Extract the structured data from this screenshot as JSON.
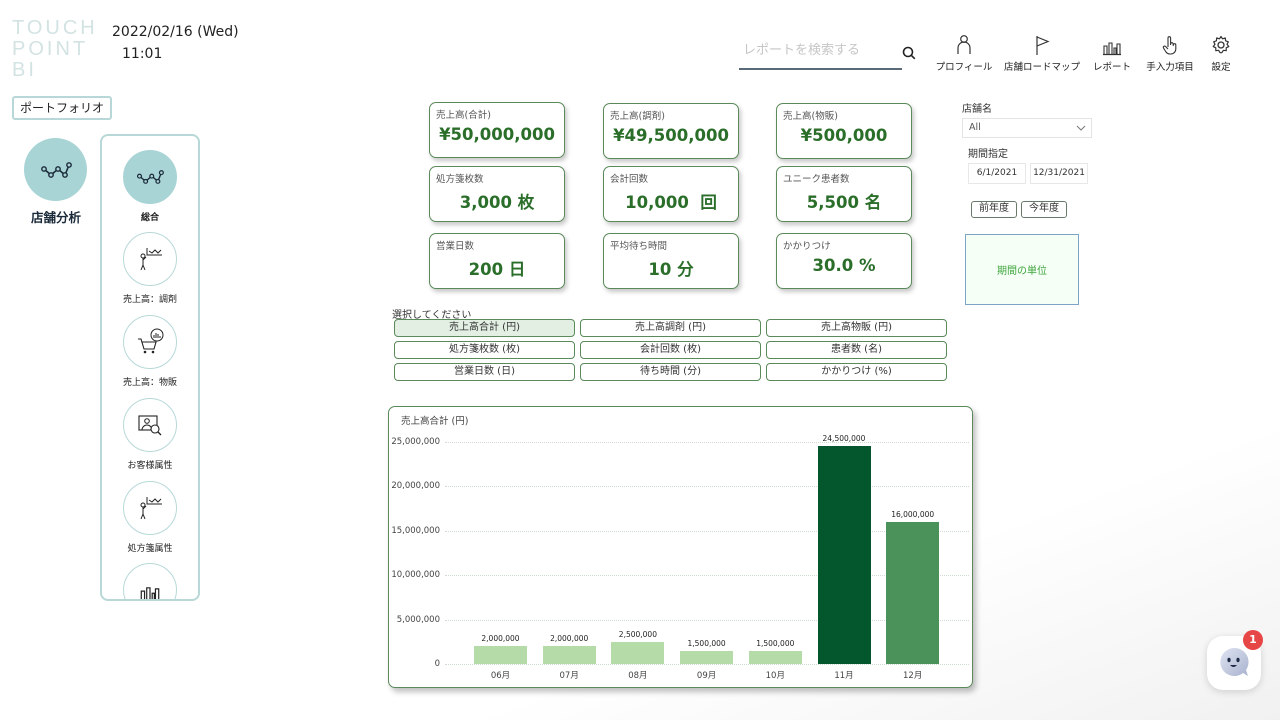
{
  "app": {
    "logo_lines": [
      "TOUCH",
      "POINT",
      "BI"
    ],
    "date": "2022/02/16 (Wed)",
    "time": "11:01",
    "portfolio_label": "ポートフォリオ"
  },
  "search": {
    "placeholder": "レポートを検索する",
    "value": ""
  },
  "nav": [
    {
      "label": "プロフィール",
      "icon": "person-icon"
    },
    {
      "label": "店舗ロードマップ",
      "icon": "flag-icon"
    },
    {
      "label": "レポート",
      "icon": "bar-chart-icon"
    },
    {
      "label": "手入力項目",
      "icon": "hand-pointer-icon"
    },
    {
      "label": "設定",
      "icon": "gear-icon"
    }
  ],
  "main_category": {
    "label": "店舗分析",
    "icon": "line-chart-icon"
  },
  "subnav": [
    {
      "label": "総合",
      "icon": "line-chart-icon",
      "active": true
    },
    {
      "label": "売上高：調剤",
      "icon": "presenter-chart-icon"
    },
    {
      "label": "売上高：物販",
      "icon": "cart-chart-icon"
    },
    {
      "label": "お客様属性",
      "icon": "customer-search-icon"
    },
    {
      "label": "処方箋属性",
      "icon": "presenter-chart-icon"
    },
    {
      "label": "",
      "icon": "bar-chart-icon"
    }
  ],
  "kpis": [
    {
      "title": "売上高(合計)",
      "value": "¥50,000,000",
      "unit": ""
    },
    {
      "title": "売上高(調剤)",
      "value": "¥49,500,000",
      "unit": ""
    },
    {
      "title": "売上高(物販)",
      "value": "¥500,000",
      "unit": ""
    },
    {
      "title": "処方箋枚数",
      "value": "3,000",
      "unit": "枚"
    },
    {
      "title": "会計回数",
      "value": "10,000",
      "unit": "回"
    },
    {
      "title": "ユニーク患者数",
      "value": "5,500",
      "unit": "名"
    },
    {
      "title": "営業日数",
      "value": "200",
      "unit": "日"
    },
    {
      "title": "平均待ち時間",
      "value": "10",
      "unit": "分"
    },
    {
      "title": "かかりつけ",
      "value": "30.0",
      "unit": "%"
    }
  ],
  "filters": {
    "store_label": "店舗名",
    "store_value": "All",
    "period_label": "期間指定",
    "start_date": "6/1/2021",
    "end_date": "12/31/2021",
    "prev_year": "前年度",
    "this_year": "今年度",
    "period_unit": "期間の単位"
  },
  "metric_selector": {
    "label": "選択してください",
    "options": [
      {
        "label": "売上高合計 (円)",
        "active": true
      },
      {
        "label": "売上高調剤 (円)"
      },
      {
        "label": "売上高物販 (円)"
      },
      {
        "label": "処方箋枚数 (枚)"
      },
      {
        "label": "会計回数 (枚)"
      },
      {
        "label": "患者数 (名)"
      },
      {
        "label": "営業日数 (日)"
      },
      {
        "label": "待ち時間 (分)"
      },
      {
        "label": "かかりつけ (%)"
      }
    ]
  },
  "chat": {
    "badge": "1"
  },
  "colors": {
    "accent_teal": "#a8d4d6",
    "kpi_green": "#2a6e2a",
    "bar_light": "#b5dba8",
    "bar_dark": "#04572d",
    "bar_mid": "#4a915a",
    "badge_red": "#e64646"
  },
  "chart_data": {
    "type": "bar",
    "title": "売上高合計 (円)",
    "xlabel": "",
    "ylabel": "",
    "categories": [
      "06月",
      "07月",
      "08月",
      "09月",
      "10月",
      "11月",
      "12月"
    ],
    "values": [
      2000000,
      2000000,
      2500000,
      1500000,
      1500000,
      24500000,
      16000000
    ],
    "value_labels": [
      "2,000,000",
      "2,000,000",
      "2,500,000",
      "1,500,000",
      "1,500,000",
      "24,500,000",
      "16,000,000"
    ],
    "bar_colors": [
      "#b5dba8",
      "#b5dba8",
      "#b5dba8",
      "#b5dba8",
      "#b5dba8",
      "#04572d",
      "#4a915a"
    ],
    "yticks": [
      0,
      5000000,
      10000000,
      15000000,
      20000000,
      25000000
    ],
    "ytick_labels": [
      "0",
      "5,000,000",
      "10,000,000",
      "15,000,000",
      "20,000,000",
      "25,000,000"
    ],
    "ylim": [
      0,
      25000000
    ],
    "grid": true,
    "legend": false
  }
}
